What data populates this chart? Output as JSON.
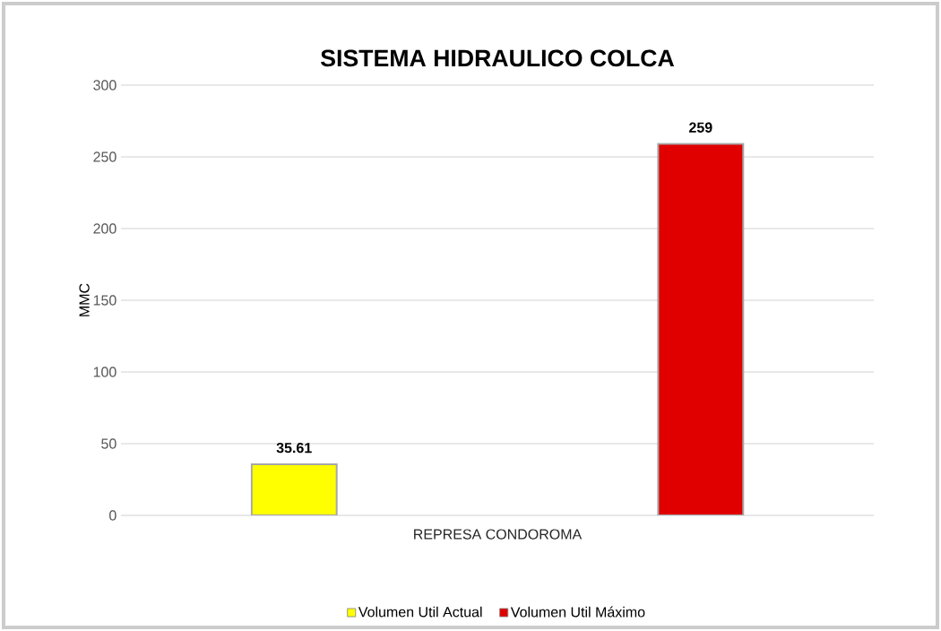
{
  "chart_data": {
    "type": "bar",
    "title": "SISTEMA HIDRAULICO COLCA",
    "ylabel": "MMC",
    "categories": [
      "REPRESA CONDOROMA"
    ],
    "series": [
      {
        "name": "Volumen Util Actual",
        "color": "#ffff00",
        "values": [
          35.61
        ]
      },
      {
        "name": "Volumen Util Máximo",
        "color": "#e00000",
        "values": [
          259
        ]
      }
    ],
    "ylim": [
      0,
      300
    ],
    "yticks": [
      0,
      50,
      100,
      150,
      200,
      250,
      300
    ],
    "grid": "y",
    "legend": "bottom",
    "data_labels": true
  }
}
